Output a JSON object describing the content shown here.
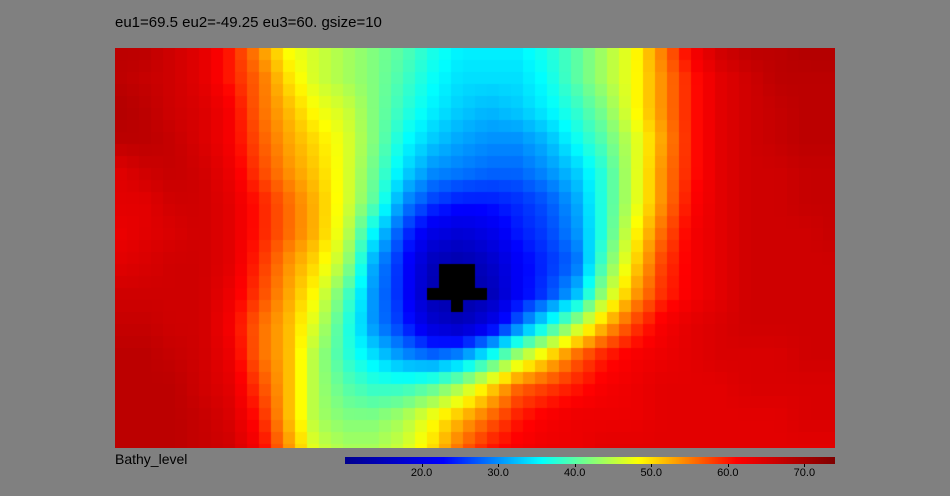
{
  "title": "eu1=69.5 eu2=-49.25 eu3=60. gsize=10",
  "variable_label": "Bathy_level",
  "chart_data": {
    "type": "heatmap",
    "title": "eu1=69.5 eu2=-49.25 eu3=60. gsize=10",
    "colorbar": {
      "label": "Bathy_level",
      "range": [
        10,
        74
      ],
      "ticks": [
        20,
        30,
        40,
        50,
        60,
        70
      ],
      "tick_labels": [
        "20.0",
        "30.0",
        "40.0",
        "50.0",
        "60.0",
        "70.0"
      ],
      "colormap": [
        "#00008f",
        "#0000ff",
        "#00ffff",
        "#ffff00",
        "#ff0000",
        "#800000"
      ]
    },
    "grid": [
      [
        68,
        68,
        66,
        64,
        60,
        54,
        48,
        46,
        44,
        42,
        40,
        37,
        35,
        35,
        35,
        37,
        40,
        44,
        48,
        55,
        62,
        66,
        68,
        68,
        69,
        69
      ],
      [
        68,
        67,
        66,
        64,
        60,
        56,
        50,
        46,
        44,
        42,
        39,
        36,
        34,
        34,
        34,
        36,
        40,
        44,
        48,
        54,
        60,
        64,
        66,
        68,
        68,
        68
      ],
      [
        69,
        68,
        66,
        65,
        62,
        56,
        52,
        48,
        46,
        42,
        38,
        35,
        33,
        32,
        33,
        35,
        38,
        42,
        48,
        54,
        60,
        64,
        66,
        67,
        68,
        68
      ],
      [
        68,
        68,
        67,
        65,
        62,
        57,
        53,
        50,
        47,
        42,
        36,
        33,
        31,
        30,
        30,
        32,
        36,
        40,
        46,
        53,
        60,
        64,
        66,
        67,
        68,
        68
      ],
      [
        64,
        66,
        67,
        66,
        63,
        58,
        54,
        51,
        47,
        41,
        34,
        30,
        29,
        28,
        28,
        30,
        33,
        38,
        46,
        54,
        60,
        64,
        66,
        66,
        67,
        67
      ],
      [
        64,
        64,
        66,
        66,
        64,
        60,
        56,
        52,
        47,
        40,
        30,
        26,
        24,
        24,
        25,
        27,
        31,
        38,
        46,
        54,
        61,
        64,
        66,
        66,
        67,
        67
      ],
      [
        63,
        64,
        65,
        66,
        64,
        60,
        56,
        52,
        46,
        35,
        26,
        20,
        18,
        20,
        24,
        26,
        30,
        38,
        48,
        56,
        62,
        64,
        66,
        66,
        66,
        67
      ],
      [
        64,
        65,
        66,
        66,
        64,
        59,
        54,
        50,
        44,
        31,
        24,
        15,
        13,
        16,
        22,
        25,
        28,
        40,
        50,
        58,
        62,
        64,
        66,
        66,
        66,
        66
      ],
      [
        66,
        66,
        66,
        66,
        63,
        58,
        53,
        48,
        40,
        30,
        24,
        14,
        12,
        14,
        22,
        26,
        32,
        44,
        53,
        59,
        62,
        64,
        66,
        66,
        66,
        66
      ],
      [
        67,
        67,
        66,
        66,
        62,
        56,
        52,
        46,
        38,
        30,
        25,
        18,
        15,
        20,
        28,
        36,
        44,
        52,
        58,
        62,
        64,
        65,
        66,
        66,
        66,
        66
      ],
      [
        68,
        68,
        67,
        66,
        63,
        56,
        52,
        44,
        38,
        34,
        30,
        28,
        30,
        36,
        44,
        50,
        56,
        60,
        62,
        63,
        64,
        65,
        65,
        65,
        66,
        66
      ],
      [
        68,
        68,
        68,
        66,
        64,
        58,
        52,
        44,
        40,
        38,
        38,
        40,
        44,
        50,
        56,
        58,
        60,
        62,
        63,
        64,
        64,
        64,
        65,
        65,
        65,
        65
      ],
      [
        68,
        68,
        68,
        67,
        65,
        60,
        52,
        44,
        42,
        42,
        44,
        48,
        52,
        56,
        60,
        62,
        63,
        63,
        63,
        64,
        64,
        64,
        64,
        64,
        65,
        65
      ],
      [
        68,
        68,
        68,
        67,
        66,
        62,
        54,
        46,
        44,
        44,
        46,
        50,
        56,
        60,
        62,
        63,
        63,
        64,
        64,
        64,
        64,
        64,
        64,
        64,
        64,
        64
      ]
    ]
  }
}
